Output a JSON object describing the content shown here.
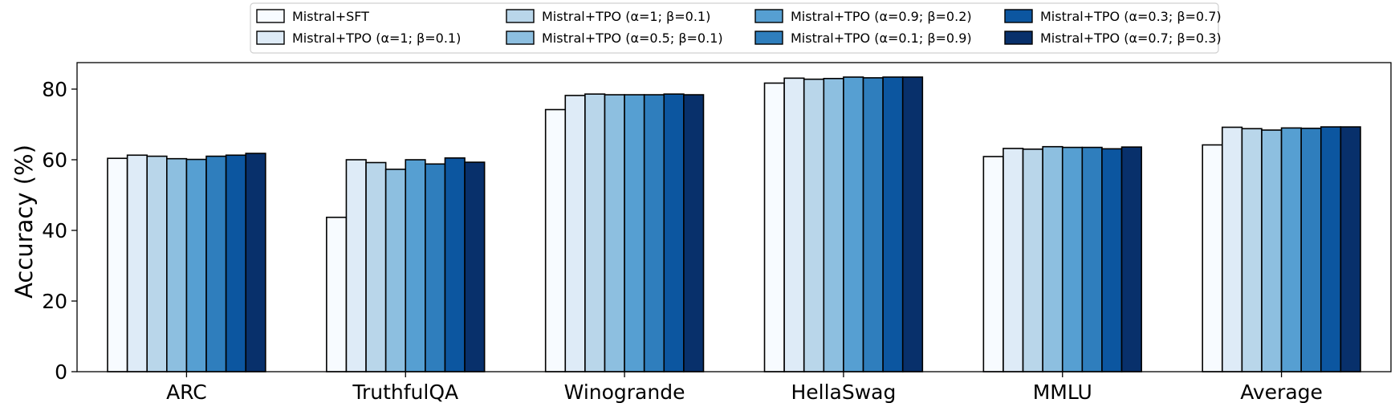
{
  "chart_data": {
    "type": "bar",
    "ylabel": "Accuracy (%)",
    "xlabel": "",
    "ylim": [
      0,
      87.5
    ],
    "yticks": [
      0,
      20,
      40,
      60,
      80
    ],
    "legend_position": "top-center",
    "grid": false,
    "categories": [
      "ARC",
      "TruthfulQA",
      "Winogrande",
      "HellaSwag",
      "MMLU",
      "Average"
    ],
    "series": [
      {
        "name": "Mistral+SFT",
        "color": "#f7fbff",
        "values": [
          60.4,
          43.7,
          74.2,
          81.7,
          60.9,
          64.2
        ]
      },
      {
        "name": "Mistral+TPO (α=1; β=0.1)",
        "color": "#deebf7",
        "values": [
          61.3,
          60.0,
          78.2,
          83.1,
          63.2,
          69.2
        ]
      },
      {
        "name": "Mistral+TPO (α=1; β=0.1)",
        "color": "#b9d6ea",
        "values": [
          61.0,
          59.2,
          78.6,
          82.8,
          63.0,
          68.8
        ]
      },
      {
        "name": "Mistral+TPO (α=0.5; β=0.1)",
        "color": "#8dbfe0",
        "values": [
          60.3,
          57.3,
          78.4,
          83.0,
          63.7,
          68.4
        ]
      },
      {
        "name": "Mistral+TPO (α=0.9; β=0.2)",
        "color": "#569fd2",
        "values": [
          60.1,
          60.0,
          78.4,
          83.4,
          63.5,
          69.0
        ]
      },
      {
        "name": "Mistral+TPO (α=0.1; β=0.9)",
        "color": "#2f7ebd",
        "values": [
          61.0,
          58.8,
          78.4,
          83.2,
          63.5,
          68.9
        ]
      },
      {
        "name": "Mistral+TPO (α=0.3; β=0.7)",
        "color": "#0c56a0",
        "values": [
          61.3,
          60.5,
          78.6,
          83.4,
          63.1,
          69.3
        ]
      },
      {
        "name": "Mistral+TPO (α=0.7; β=0.3)",
        "color": "#08306b",
        "values": [
          61.8,
          59.3,
          78.4,
          83.4,
          63.6,
          69.3
        ]
      }
    ]
  }
}
